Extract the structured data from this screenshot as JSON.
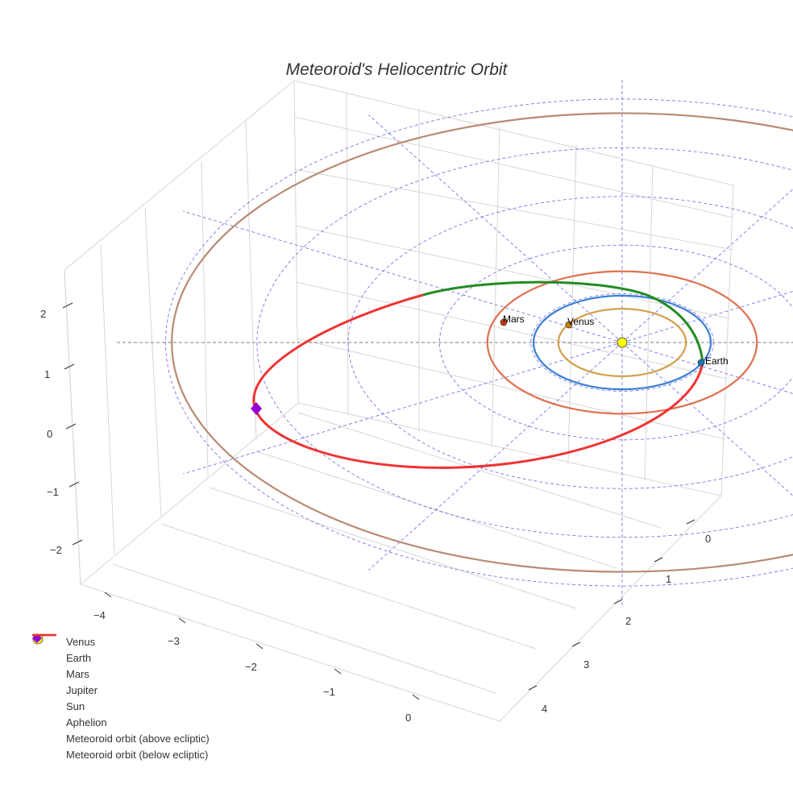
{
  "chart_data": {
    "type": "scatter3d",
    "title": "Meteoroid's Heliocentric Orbit",
    "z_ticks": [
      "2",
      "1",
      "0",
      "−1",
      "−2"
    ],
    "x_ticks": [
      "−4",
      "−3",
      "−2",
      "−1",
      "0"
    ],
    "y_ticks": [
      "0",
      "1",
      "2",
      "3",
      "4"
    ],
    "planet_orbits_au": [
      {
        "name": "Venus",
        "radius": 0.72,
        "color": "#d4a04a"
      },
      {
        "name": "Earth",
        "radius": 1.0,
        "color": "#3a7fd5"
      },
      {
        "name": "Mars",
        "radius": 1.52,
        "color": "#e07050"
      },
      {
        "name": "Jupiter",
        "radius": 5.2,
        "color": "#b88a72"
      }
    ],
    "point_labels": [
      "Mars",
      "Venus",
      "Earth"
    ],
    "legend": [
      {
        "label": "Venus",
        "symbol": "dot",
        "color": "#c8800a"
      },
      {
        "label": "Earth",
        "symbol": "dot",
        "color": "#1f77b4"
      },
      {
        "label": "Mars",
        "symbol": "dot",
        "color": "#c8400a"
      },
      {
        "label": "Jupiter",
        "symbol": "dot",
        "color": "#a0522d"
      },
      {
        "label": "Sun",
        "symbol": "sun",
        "color": "#ffff00"
      },
      {
        "label": "Aphelion",
        "symbol": "diamond",
        "color": "#9400d3"
      },
      {
        "label": "Meteoroid orbit (above ecliptic)",
        "symbol": "line",
        "color": "#228b22"
      },
      {
        "label": "Meteoroid orbit (below ecliptic)",
        "symbol": "line",
        "color": "#ee3333"
      }
    ]
  }
}
